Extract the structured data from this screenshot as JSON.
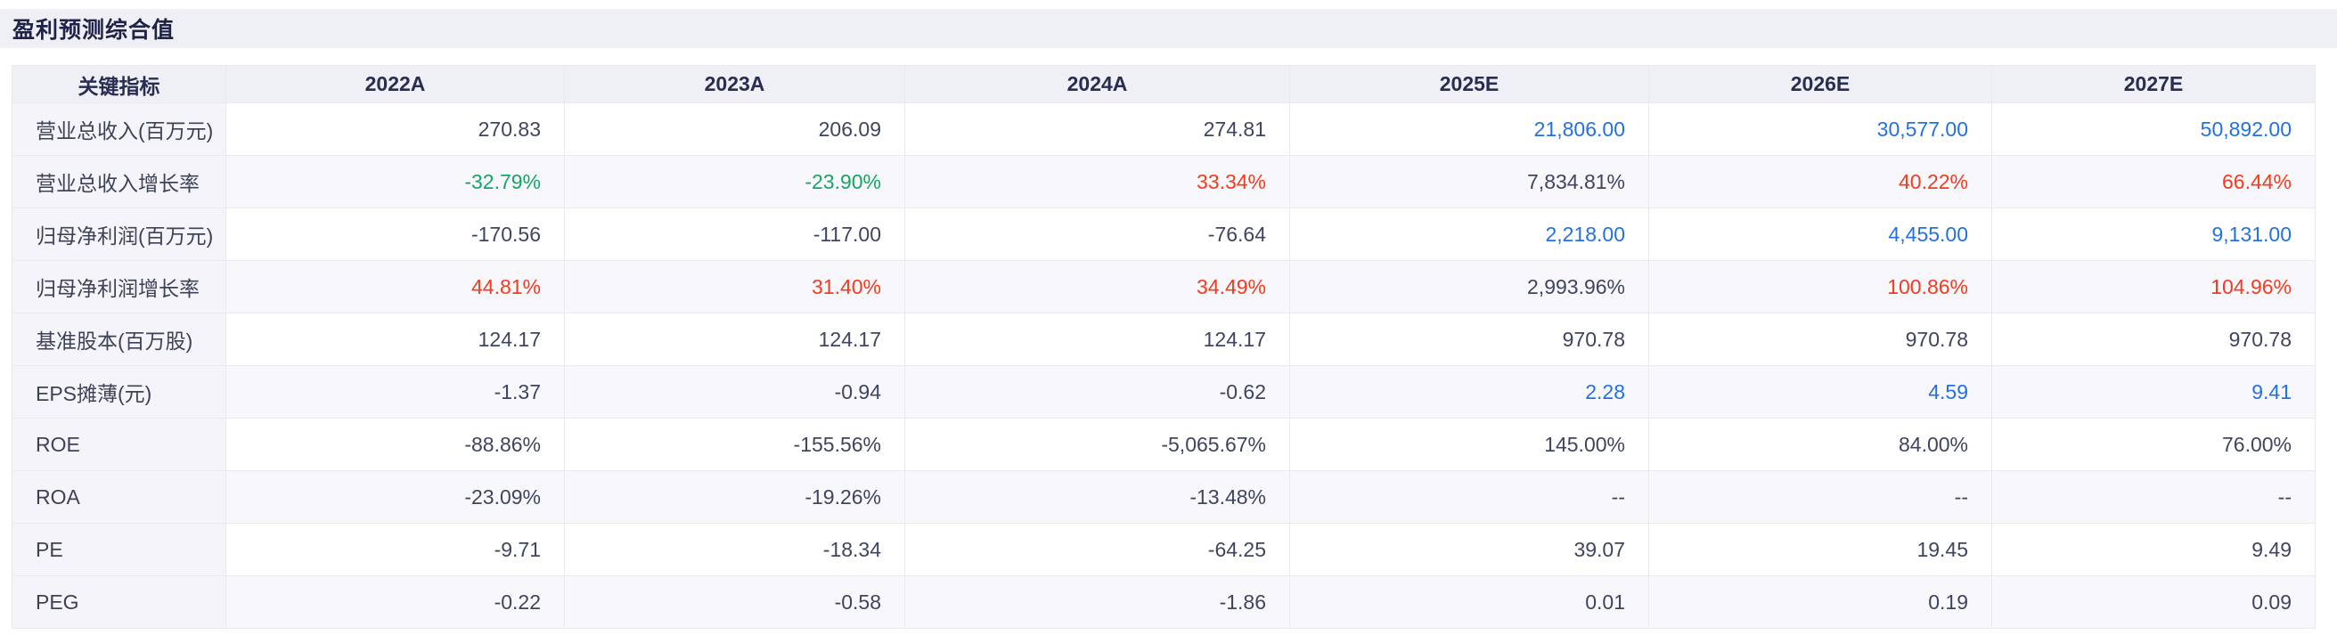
{
  "page": {
    "title": "盈利预测综合值"
  },
  "colors": {
    "positive_green": "#16a563",
    "negative_red": "#f43b1e",
    "estimate_blue": "#2271e3",
    "default_text": "#3f4460",
    "title_bar_bg": "#eef0f5",
    "header_bg": "#efeff6",
    "label_col_bg": "#f4f4fa",
    "zebra_row_bg": "#f8f8fc"
  },
  "table": {
    "columns": [
      {
        "label": "关键指标"
      },
      {
        "label": "2022A"
      },
      {
        "label": "2023A"
      },
      {
        "label": "2024A"
      },
      {
        "label": "2025E"
      },
      {
        "label": "2026E"
      },
      {
        "label": "2027E"
      }
    ],
    "rows": [
      {
        "label": "营业总收入(百万元)",
        "cells": [
          {
            "text": "270.83",
            "color": "default"
          },
          {
            "text": "206.09",
            "color": "default"
          },
          {
            "text": "274.81",
            "color": "default"
          },
          {
            "text": "21,806.00",
            "color": "blue"
          },
          {
            "text": "30,577.00",
            "color": "blue"
          },
          {
            "text": "50,892.00",
            "color": "blue"
          }
        ]
      },
      {
        "label": "营业总收入增长率",
        "cells": [
          {
            "text": "-32.79%",
            "color": "green"
          },
          {
            "text": "-23.90%",
            "color": "green"
          },
          {
            "text": "33.34%",
            "color": "red"
          },
          {
            "text": "7,834.81%",
            "color": "default"
          },
          {
            "text": "40.22%",
            "color": "red"
          },
          {
            "text": "66.44%",
            "color": "red"
          }
        ]
      },
      {
        "label": "归母净利润(百万元)",
        "cells": [
          {
            "text": "-170.56",
            "color": "default"
          },
          {
            "text": "-117.00",
            "color": "default"
          },
          {
            "text": "-76.64",
            "color": "default"
          },
          {
            "text": "2,218.00",
            "color": "blue"
          },
          {
            "text": "4,455.00",
            "color": "blue"
          },
          {
            "text": "9,131.00",
            "color": "blue"
          }
        ]
      },
      {
        "label": "归母净利润增长率",
        "cells": [
          {
            "text": "44.81%",
            "color": "red"
          },
          {
            "text": "31.40%",
            "color": "red"
          },
          {
            "text": "34.49%",
            "color": "red"
          },
          {
            "text": "2,993.96%",
            "color": "default"
          },
          {
            "text": "100.86%",
            "color": "red"
          },
          {
            "text": "104.96%",
            "color": "red"
          }
        ]
      },
      {
        "label": "基准股本(百万股)",
        "cells": [
          {
            "text": "124.17",
            "color": "default"
          },
          {
            "text": "124.17",
            "color": "default"
          },
          {
            "text": "124.17",
            "color": "default"
          },
          {
            "text": "970.78",
            "color": "default"
          },
          {
            "text": "970.78",
            "color": "default"
          },
          {
            "text": "970.78",
            "color": "default"
          }
        ]
      },
      {
        "label": "EPS摊薄(元)",
        "cells": [
          {
            "text": "-1.37",
            "color": "default"
          },
          {
            "text": "-0.94",
            "color": "default"
          },
          {
            "text": "-0.62",
            "color": "default"
          },
          {
            "text": "2.28",
            "color": "blue"
          },
          {
            "text": "4.59",
            "color": "blue"
          },
          {
            "text": "9.41",
            "color": "blue"
          }
        ]
      },
      {
        "label": "ROE",
        "cells": [
          {
            "text": "-88.86%",
            "color": "default"
          },
          {
            "text": "-155.56%",
            "color": "default"
          },
          {
            "text": "-5,065.67%",
            "color": "default"
          },
          {
            "text": "145.00%",
            "color": "default"
          },
          {
            "text": "84.00%",
            "color": "default"
          },
          {
            "text": "76.00%",
            "color": "default"
          }
        ]
      },
      {
        "label": "ROA",
        "cells": [
          {
            "text": "-23.09%",
            "color": "default"
          },
          {
            "text": "-19.26%",
            "color": "default"
          },
          {
            "text": "-13.48%",
            "color": "default"
          },
          {
            "text": "--",
            "color": "default"
          },
          {
            "text": "--",
            "color": "default"
          },
          {
            "text": "--",
            "color": "default"
          }
        ]
      },
      {
        "label": "PE",
        "cells": [
          {
            "text": "-9.71",
            "color": "default"
          },
          {
            "text": "-18.34",
            "color": "default"
          },
          {
            "text": "-64.25",
            "color": "default"
          },
          {
            "text": "39.07",
            "color": "default"
          },
          {
            "text": "19.45",
            "color": "default"
          },
          {
            "text": "9.49",
            "color": "default"
          }
        ]
      },
      {
        "label": "PEG",
        "cells": [
          {
            "text": "-0.22",
            "color": "default"
          },
          {
            "text": "-0.58",
            "color": "default"
          },
          {
            "text": "-1.86",
            "color": "default"
          },
          {
            "text": "0.01",
            "color": "default"
          },
          {
            "text": "0.19",
            "color": "default"
          },
          {
            "text": "0.09",
            "color": "default"
          }
        ]
      }
    ]
  }
}
